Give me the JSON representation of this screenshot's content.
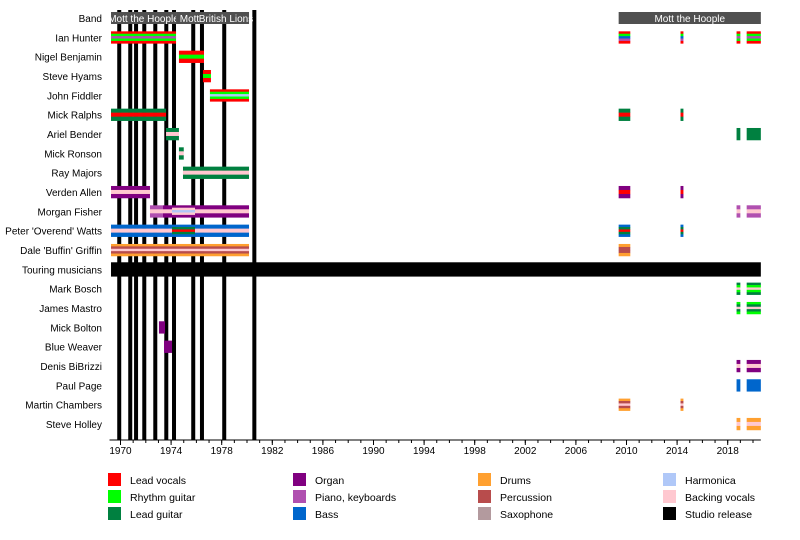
{
  "chart_data": {
    "type": "timeline",
    "xlim": [
      1969.25,
      2020.62
    ],
    "x_ticks_major": [
      1970,
      1974,
      1978,
      1982,
      1986,
      1990,
      1994,
      1998,
      2002,
      2006,
      2010,
      2014,
      2018
    ],
    "x_ticks_minor_step": 1,
    "role_colors": {
      "Lead vocals": "#ff0000",
      "Rhythm guitar": "#00ff00",
      "Lead guitar": "#008040",
      "Organ": "#800080",
      "Piano, keyboards": "#b050b0",
      "Bass": "#0066cc",
      "Drums": "#ffa030",
      "Percussion": "#b84c4c",
      "Saxophone": "#b39a9e",
      "Harmonica": "#b0c8f8",
      "Backing vocals": "#ffc8d0",
      "Studio release": "#000000"
    },
    "legend": [
      [
        "Lead vocals",
        "Rhythm guitar",
        "Lead guitar"
      ],
      [
        "Organ",
        "Piano, keyboards",
        "Bass"
      ],
      [
        "Drums",
        "Percussion",
        "Saxophone"
      ],
      [
        "Harmonica",
        "Backing vocals",
        "Studio release"
      ]
    ],
    "band": {
      "label": "Band",
      "color": "#505050",
      "periods": [
        {
          "name": "Mott the Hoople",
          "start": 1969.25,
          "end": 1974.39
        },
        {
          "name": "Mott",
          "start": 1974.39,
          "end": 1976.52
        },
        {
          "name": "British Lions",
          "start": 1976.52,
          "end": 1980.16
        },
        {
          "name": "Mott the Hoople",
          "start": 2009.38,
          "end": 2020.62
        }
      ]
    },
    "members": [
      {
        "name": "Ian Hunter",
        "spans": [
          {
            "start": 1969.25,
            "end": 1974.39,
            "roles": [
              "Lead vocals",
              "Rhythm guitar",
              "Piano, keyboards",
              "Rhythm guitar",
              "Lead vocals"
            ]
          },
          {
            "start": 2009.38,
            "end": 2010.3,
            "roles": [
              "Lead vocals",
              "Rhythm guitar",
              "Bass",
              "Piano, keyboards",
              "Lead vocals"
            ]
          },
          {
            "start": 2014.27,
            "end": 2014.5,
            "roles": [
              "Lead vocals",
              "Rhythm guitar",
              "Bass",
              "Piano, keyboards",
              "Lead vocals"
            ]
          },
          {
            "start": 2018.7,
            "end": 2019.0,
            "roles": [
              "Lead vocals",
              "Rhythm guitar",
              "Piano, keyboards",
              "Rhythm guitar",
              "Lead vocals"
            ]
          },
          {
            "start": 2019.5,
            "end": 2020.62,
            "roles": [
              "Lead vocals",
              "Rhythm guitar",
              "Piano, keyboards",
              "Rhythm guitar",
              "Lead vocals"
            ]
          }
        ]
      },
      {
        "name": "Nigel Benjamin",
        "spans": [
          {
            "start": 1974.62,
            "end": 1976.6,
            "roles": [
              "Lead vocals",
              "Rhythm guitar",
              "Lead vocals"
            ]
          }
        ]
      },
      {
        "name": "Steve Hyams",
        "spans": [
          {
            "start": 1976.52,
            "end": 1977.15,
            "roles": [
              "Lead vocals",
              "Rhythm guitar",
              "Lead vocals"
            ]
          }
        ]
      },
      {
        "name": "John Fiddler",
        "spans": [
          {
            "start": 1977.07,
            "end": 1980.16,
            "roles": [
              "Lead vocals",
              "Rhythm guitar",
              "Harmonica",
              "Rhythm guitar",
              "Lead vocals"
            ]
          }
        ]
      },
      {
        "name": "Mick Ralphs",
        "spans": [
          {
            "start": 1969.25,
            "end": 1973.6,
            "roles": [
              "Lead guitar",
              "Lead vocals",
              "Lead guitar"
            ]
          },
          {
            "start": 2009.38,
            "end": 2010.3,
            "roles": [
              "Lead guitar",
              "Lead vocals",
              "Lead guitar"
            ]
          },
          {
            "start": 2014.27,
            "end": 2014.5,
            "roles": [
              "Lead guitar",
              "Lead vocals",
              "Lead guitar"
            ]
          }
        ]
      },
      {
        "name": "Ariel Bender",
        "spans": [
          {
            "start": 1973.6,
            "end": 1974.62,
            "roles": [
              "Lead guitar",
              "Backing vocals",
              "Lead guitar"
            ]
          },
          {
            "start": 2018.7,
            "end": 2019.0,
            "roles": [
              "Lead guitar"
            ]
          },
          {
            "start": 2019.5,
            "end": 2020.62,
            "roles": [
              "Lead guitar"
            ]
          }
        ]
      },
      {
        "name": "Mick Ronson",
        "spans": [
          {
            "start": 1974.62,
            "end": 1975.0,
            "roles": [
              "Lead guitar",
              "Backing vocals",
              "Lead guitar"
            ]
          }
        ]
      },
      {
        "name": "Ray Majors",
        "spans": [
          {
            "start": 1974.94,
            "end": 1980.16,
            "roles": [
              "Lead guitar",
              "Backing vocals",
              "Lead guitar"
            ]
          }
        ]
      },
      {
        "name": "Verden Allen",
        "spans": [
          {
            "start": 1969.25,
            "end": 1972.33,
            "roles": [
              "Organ",
              "Backing vocals",
              "Organ"
            ]
          },
          {
            "start": 2009.38,
            "end": 2010.3,
            "roles": [
              "Organ",
              "Lead vocals",
              "Organ"
            ]
          },
          {
            "start": 2014.27,
            "end": 2014.5,
            "roles": [
              "Organ",
              "Lead vocals",
              "Organ"
            ]
          }
        ]
      },
      {
        "name": "Morgan Fisher",
        "spans": [
          {
            "start": 1972.33,
            "end": 1973.36,
            "roles": [
              "Piano, keyboards",
              "Backing vocals",
              "Piano, keyboards"
            ]
          },
          {
            "start": 1973.36,
            "end": 1974.07,
            "roles": [
              "Organ",
              "Backing vocals",
              "Organ"
            ]
          },
          {
            "start": 1974.07,
            "end": 1975.89,
            "roles": [
              "Organ",
              "Backing vocals",
              "Harmonica",
              "Backing vocals",
              "Organ"
            ]
          },
          {
            "start": 1975.89,
            "end": 1980.16,
            "roles": [
              "Organ",
              "Backing vocals",
              "Organ"
            ]
          },
          {
            "start": 2018.7,
            "end": 2019.0,
            "roles": [
              "Piano, keyboards",
              "Backing vocals",
              "Piano, keyboards"
            ]
          },
          {
            "start": 2019.5,
            "end": 2020.62,
            "roles": [
              "Piano, keyboards",
              "Backing vocals",
              "Piano, keyboards"
            ]
          }
        ]
      },
      {
        "name": "Peter 'Overend' Watts",
        "spans": [
          {
            "start": 1969.25,
            "end": 1974.07,
            "roles": [
              "Bass",
              "Backing vocals",
              "Bass"
            ]
          },
          {
            "start": 1974.07,
            "end": 1975.89,
            "roles": [
              "Bass",
              "Lead guitar",
              "Lead vocals",
              "Lead guitar",
              "Bass"
            ]
          },
          {
            "start": 1975.89,
            "end": 1980.16,
            "roles": [
              "Bass",
              "Backing vocals",
              "Bass"
            ]
          },
          {
            "start": 2009.38,
            "end": 2010.3,
            "roles": [
              "Bass",
              "Lead guitar",
              "Lead vocals",
              "Lead guitar",
              "Bass"
            ]
          },
          {
            "start": 2014.27,
            "end": 2014.5,
            "roles": [
              "Bass",
              "Lead guitar",
              "Lead vocals",
              "Lead guitar",
              "Bass"
            ]
          }
        ]
      },
      {
        "name": "Dale 'Buffin' Griffin",
        "spans": [
          {
            "start": 1969.25,
            "end": 1980.16,
            "roles": [
              "Drums",
              "Percussion",
              "Backing vocals",
              "Percussion",
              "Drums"
            ]
          },
          {
            "start": 2009.38,
            "end": 2010.3,
            "roles": [
              "Drums",
              "Percussion",
              "Percussion",
              "Drums"
            ]
          }
        ]
      },
      {
        "name": "Touring musicians",
        "heading": true,
        "spans": [
          {
            "start": 1969.25,
            "end": 2020.62,
            "roles": [
              "Studio release"
            ]
          }
        ]
      },
      {
        "name": "Mark Bosch",
        "spans": [
          {
            "start": 2018.7,
            "end": 2019.0,
            "roles": [
              "Lead guitar",
              "Rhythm guitar",
              "Backing vocals",
              "Rhythm guitar",
              "Lead guitar"
            ]
          },
          {
            "start": 2019.5,
            "end": 2020.62,
            "roles": [
              "Lead guitar",
              "Rhythm guitar",
              "Backing vocals",
              "Rhythm guitar",
              "Lead guitar"
            ]
          }
        ]
      },
      {
        "name": "James Mastro",
        "spans": [
          {
            "start": 2018.7,
            "end": 2019.0,
            "roles": [
              "Rhythm guitar",
              "Lead guitar",
              "Backing vocals",
              "Lead guitar",
              "Rhythm guitar"
            ]
          },
          {
            "start": 2019.5,
            "end": 2020.62,
            "roles": [
              "Rhythm guitar",
              "Lead guitar",
              "Backing vocals",
              "Lead guitar",
              "Rhythm guitar"
            ]
          }
        ]
      },
      {
        "name": "Mick Bolton",
        "spans": [
          {
            "start": 1973.04,
            "end": 1973.52,
            "roles": [
              "Organ"
            ]
          }
        ]
      },
      {
        "name": "Blue Weaver",
        "spans": [
          {
            "start": 1973.44,
            "end": 1974.07,
            "roles": [
              "Organ"
            ]
          }
        ]
      },
      {
        "name": "Denis BiBrizzi",
        "spans": [
          {
            "start": 2018.7,
            "end": 2019.0,
            "roles": [
              "Organ",
              "Backing vocals",
              "Organ"
            ]
          },
          {
            "start": 2019.5,
            "end": 2020.62,
            "roles": [
              "Organ",
              "Backing vocals",
              "Organ"
            ]
          }
        ]
      },
      {
        "name": "Paul Page",
        "spans": [
          {
            "start": 2018.7,
            "end": 2019.0,
            "roles": [
              "Bass"
            ]
          },
          {
            "start": 2019.5,
            "end": 2020.62,
            "roles": [
              "Bass"
            ]
          }
        ]
      },
      {
        "name": "Martin Chambers",
        "spans": [
          {
            "start": 2009.38,
            "end": 2010.3,
            "roles": [
              "Drums",
              "Percussion",
              "Backing vocals",
              "Percussion",
              "Drums"
            ]
          },
          {
            "start": 2014.27,
            "end": 2014.5,
            "roles": [
              "Drums",
              "Percussion",
              "Backing vocals",
              "Percussion",
              "Drums"
            ]
          }
        ]
      },
      {
        "name": "Steve Holley",
        "spans": [
          {
            "start": 2018.7,
            "end": 2019.0,
            "roles": [
              "Drums",
              "Backing vocals",
              "Drums"
            ]
          },
          {
            "start": 2019.5,
            "end": 2020.62,
            "roles": [
              "Drums",
              "Backing vocals",
              "Drums"
            ]
          }
        ]
      }
    ],
    "studio_releases": [
      1969.9,
      1970.77,
      1971.23,
      1971.88,
      1972.75,
      1973.62,
      1974.23,
      1975.75,
      1976.44,
      1978.2,
      1980.58
    ]
  }
}
